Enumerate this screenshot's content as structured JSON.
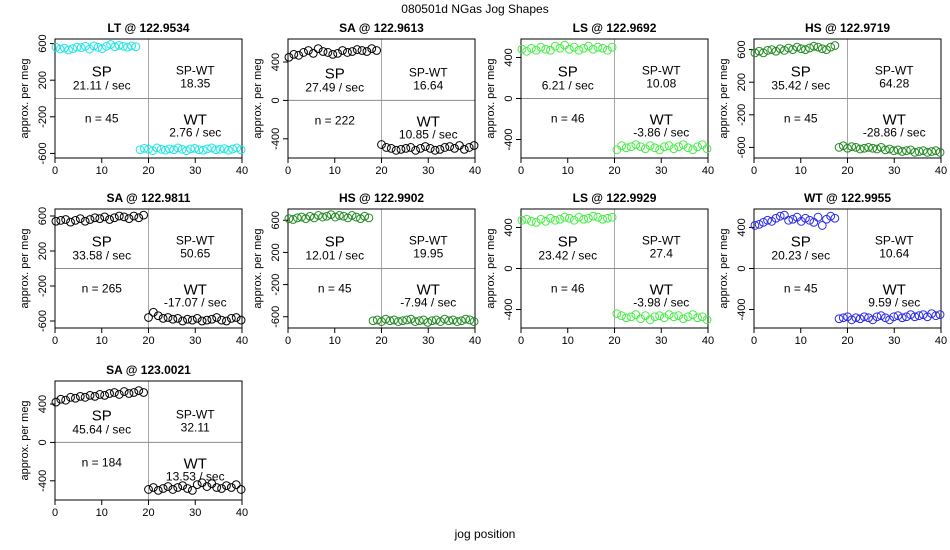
{
  "figure": {
    "title": "080501d   NGas Jog Shapes",
    "xlabel": "jog position",
    "ylabel": "approx. per meg"
  },
  "chart_data": [
    {
      "type": "scatter",
      "title": "LT @ 122.9534",
      "color": "#22e5e5",
      "xlim": [
        0,
        40
      ],
      "ylim": [
        -650,
        650
      ],
      "xticks": [
        0,
        10,
        20,
        30,
        40
      ],
      "yticks": [
        -600,
        -200,
        200,
        600
      ],
      "sp_label": "SP",
      "sp_rate": "21.11 / sec",
      "spwt_label": "SP-WT",
      "spwt_value": "18.35",
      "n_label": "n = 45",
      "wt_label": "WT",
      "wt_rate": "2.76 / sec",
      "x": [
        1,
        2,
        3,
        4,
        5,
        6,
        7,
        8,
        9,
        10,
        11,
        12,
        13,
        14,
        15,
        16,
        17,
        18,
        19,
        20,
        21,
        22,
        23,
        24,
        25,
        26,
        27,
        28,
        29,
        30,
        31,
        32,
        33,
        34,
        35,
        36,
        37,
        38,
        39,
        40,
        41,
        42,
        43,
        44,
        45
      ],
      "y": [
        560,
        540,
        550,
        530,
        545,
        560,
        555,
        570,
        540,
        575,
        560,
        545,
        570,
        590,
        565,
        580,
        570,
        560,
        575,
        565,
        -560,
        -545,
        -555,
        -570,
        -540,
        -555,
        -565,
        -550,
        -560,
        -540,
        -555,
        -570,
        -550,
        -545,
        -560,
        -565,
        -550,
        -540,
        -560,
        -555,
        -548,
        -565,
        -552,
        -540,
        -560
      ]
    },
    {
      "type": "scatter",
      "title": "SA @ 122.9613",
      "color": "#000000",
      "xlim": [
        0,
        40
      ],
      "ylim": [
        -600,
        640
      ],
      "xticks": [
        0,
        10,
        20,
        30,
        40
      ],
      "yticks": [
        -400,
        0,
        400
      ],
      "sp_label": "SP",
      "sp_rate": "27.49 / sec",
      "spwt_label": "SP-WT",
      "spwt_value": "16.64",
      "n_label": "n = 222",
      "wt_label": "WT",
      "wt_rate": "10.85 / sec",
      "x": [
        1,
        2,
        3,
        4,
        5,
        6,
        7,
        8,
        9,
        10,
        11,
        12,
        13,
        14,
        15,
        16,
        17,
        18,
        19,
        20,
        21,
        22,
        23,
        24,
        25,
        26,
        27,
        28,
        29,
        30,
        31,
        32,
        33,
        34,
        35,
        36,
        37,
        38,
        39
      ],
      "y": [
        450,
        480,
        470,
        500,
        520,
        490,
        540,
        510,
        500,
        480,
        490,
        520,
        500,
        510,
        530,
        520,
        510,
        540,
        520,
        -460,
        -490,
        -500,
        -520,
        -510,
        -500,
        -490,
        -520,
        -500,
        -480,
        -500,
        -520,
        -510,
        -490,
        -480,
        -500,
        -470,
        -510,
        -490,
        -470
      ]
    },
    {
      "type": "scatter",
      "title": "LS @ 122.9692",
      "color": "#44ee44",
      "xlim": [
        0,
        40
      ],
      "ylim": [
        -580,
        580
      ],
      "xticks": [
        0,
        10,
        20,
        30,
        40
      ],
      "yticks": [
        -400,
        0,
        400
      ],
      "sp_label": "SP",
      "sp_rate": "6.21 / sec",
      "spwt_label": "SP-WT",
      "spwt_value": "10.08",
      "n_label": "n = 46",
      "wt_label": "WT",
      "wt_rate": "-3.86 / sec",
      "x": [
        1,
        2,
        3,
        4,
        5,
        6,
        7,
        8,
        9,
        10,
        11,
        12,
        13,
        14,
        15,
        16,
        17,
        18,
        19,
        20,
        21,
        22,
        23,
        24,
        25,
        26,
        27,
        28,
        29,
        30,
        31,
        32,
        33,
        34,
        35,
        36,
        37,
        38,
        39,
        40
      ],
      "y": [
        480,
        460,
        490,
        470,
        500,
        480,
        470,
        510,
        490,
        520,
        480,
        500,
        470,
        490,
        510,
        480,
        500,
        490,
        470,
        500,
        -500,
        -460,
        -480,
        -470,
        -450,
        -470,
        -490,
        -460,
        -480,
        -500,
        -470,
        -460,
        -490,
        -470,
        -450,
        -480,
        -500,
        -470,
        -450,
        -490
      ]
    },
    {
      "type": "scatter",
      "title": "HS @ 122.9719",
      "color": "#228b22",
      "xlim": [
        0,
        40
      ],
      "ylim": [
        -730,
        730
      ],
      "xticks": [
        0,
        10,
        20,
        30,
        40
      ],
      "yticks": [
        -600,
        -200,
        200,
        600
      ],
      "sp_label": "SP",
      "sp_rate": "35.42 / sec",
      "spwt_label": "SP-WT",
      "spwt_value": "64.28",
      "n_label": "n = 45",
      "wt_label": "WT",
      "wt_rate": "-28.86 / sec",
      "x": [
        1,
        2,
        3,
        4,
        5,
        6,
        7,
        8,
        9,
        10,
        11,
        12,
        13,
        14,
        15,
        16,
        17,
        18,
        19,
        20,
        21,
        22,
        23,
        24,
        25,
        26,
        27,
        28,
        29,
        30,
        31,
        32,
        33,
        34,
        35,
        36,
        37,
        38,
        39,
        40,
        41,
        42,
        43,
        44,
        45
      ],
      "y": [
        560,
        580,
        560,
        590,
        600,
        580,
        610,
        590,
        620,
        600,
        630,
        610,
        600,
        620,
        640,
        630,
        610,
        600,
        630,
        650,
        -600,
        -580,
        -610,
        -590,
        -600,
        -620,
        -610,
        -600,
        -610,
        -620,
        -600,
        -630,
        -620,
        -640,
        -630,
        -650,
        -640,
        -630,
        -660,
        -650,
        -640,
        -660,
        -650,
        -640,
        -660
      ]
    },
    {
      "type": "scatter",
      "title": "SA @ 122.9811",
      "color": "#000000",
      "xlim": [
        0,
        40
      ],
      "ylim": [
        -680,
        680
      ],
      "xticks": [
        0,
        10,
        20,
        30,
        40
      ],
      "yticks": [
        -600,
        -200,
        200,
        600
      ],
      "sp_label": "SP",
      "sp_rate": "33.58 / sec",
      "spwt_label": "SP-WT",
      "spwt_value": "50.65",
      "n_label": "n = 265",
      "wt_label": "WT",
      "wt_rate": "-17.07 / sec",
      "x": [
        1,
        2,
        3,
        4,
        5,
        6,
        7,
        8,
        9,
        10,
        11,
        12,
        13,
        14,
        15,
        16,
        17,
        18,
        19,
        20,
        21,
        22,
        23,
        24,
        25,
        26,
        27,
        28,
        29,
        30,
        31,
        32,
        33,
        34,
        35,
        36,
        37,
        38,
        39
      ],
      "y": [
        540,
        550,
        560,
        530,
        550,
        570,
        540,
        560,
        580,
        570,
        590,
        560,
        580,
        600,
        590,
        570,
        600,
        580,
        610,
        -560,
        -500,
        -540,
        -570,
        -560,
        -580,
        -570,
        -600,
        -580,
        -590,
        -570,
        -600,
        -590,
        -580,
        -560,
        -590,
        -600,
        -570,
        -560,
        -590
      ]
    },
    {
      "type": "scatter",
      "title": "HS @ 122.9902",
      "color": "#228b22",
      "xlim": [
        0,
        40
      ],
      "ylim": [
        -740,
        740
      ],
      "xticks": [
        0,
        10,
        20,
        30,
        40
      ],
      "yticks": [
        -600,
        -200,
        200,
        600
      ],
      "sp_label": "SP",
      "sp_rate": "12.01 / sec",
      "spwt_label": "SP-WT",
      "spwt_value": "19.95",
      "n_label": "n = 45",
      "wt_label": "WT",
      "wt_rate": "-7.94 / sec",
      "x": [
        1,
        2,
        3,
        4,
        5,
        6,
        7,
        8,
        9,
        10,
        11,
        12,
        13,
        14,
        15,
        16,
        17,
        18,
        19,
        20,
        21,
        22,
        23,
        24,
        25,
        26,
        27,
        28,
        29,
        30,
        31,
        32,
        33,
        34,
        35,
        36,
        37,
        38,
        39,
        40,
        41,
        42,
        43,
        44,
        45
      ],
      "y": [
        620,
        610,
        630,
        640,
        620,
        650,
        630,
        660,
        640,
        650,
        670,
        640,
        660,
        650,
        630,
        660,
        640,
        620,
        650,
        630,
        -650,
        -640,
        -660,
        -630,
        -650,
        -640,
        -660,
        -650,
        -640,
        -630,
        -660,
        -650,
        -640,
        -670,
        -650,
        -640,
        -660,
        -630,
        -650,
        -640,
        -660,
        -650,
        -630,
        -640,
        -660
      ]
    },
    {
      "type": "scatter",
      "title": "LS @ 122.9929",
      "color": "#44ee44",
      "xlim": [
        0,
        40
      ],
      "ylim": [
        -580,
        580
      ],
      "xticks": [
        0,
        10,
        20,
        30,
        40
      ],
      "yticks": [
        -400,
        0,
        400
      ],
      "sp_label": "SP",
      "sp_rate": "23.42 / sec",
      "spwt_label": "SP-WT",
      "spwt_value": "27.4",
      "n_label": "n = 46",
      "wt_label": "WT",
      "wt_rate": "-3.98 / sec",
      "x": [
        1,
        2,
        3,
        4,
        5,
        6,
        7,
        8,
        9,
        10,
        11,
        12,
        13,
        14,
        15,
        16,
        17,
        18,
        19,
        20,
        21,
        22,
        23,
        24,
        25,
        26,
        27,
        28,
        29,
        30,
        31,
        32,
        33,
        34,
        35,
        36,
        37,
        38,
        39,
        40
      ],
      "y": [
        470,
        480,
        460,
        450,
        480,
        460,
        490,
        470,
        480,
        500,
        490,
        470,
        500,
        480,
        490,
        510,
        500,
        480,
        490,
        500,
        -440,
        -460,
        -480,
        -470,
        -450,
        -490,
        -460,
        -500,
        -470,
        -460,
        -480,
        -450,
        -470,
        -460,
        -490,
        -470,
        -450,
        -480,
        -470,
        -500
      ]
    },
    {
      "type": "scatter",
      "title": "WT @ 122.9955",
      "color": "#2a2aee",
      "xlim": [
        0,
        40
      ],
      "ylim": [
        -580,
        580
      ],
      "xticks": [
        0,
        10,
        20,
        30,
        40
      ],
      "yticks": [
        -400,
        0,
        400
      ],
      "sp_label": "SP",
      "sp_rate": "20.23 / sec",
      "spwt_label": "SP-WT",
      "spwt_value": "10.64",
      "n_label": "n = 45",
      "wt_label": "WT",
      "wt_rate": "9.59 / sec",
      "x": [
        1,
        2,
        3,
        4,
        5,
        6,
        7,
        8,
        9,
        10,
        11,
        12,
        13,
        14,
        15,
        16,
        17,
        18,
        19,
        20,
        21,
        22,
        23,
        24,
        25,
        26,
        27,
        28,
        29,
        30,
        31,
        32,
        33,
        34,
        35,
        36,
        37,
        38,
        39,
        40,
        41,
        42,
        43,
        44,
        45
      ],
      "y": [
        420,
        430,
        450,
        470,
        460,
        490,
        510,
        520,
        470,
        480,
        500,
        460,
        490,
        470,
        450,
        500,
        420,
        480,
        510,
        490,
        -490,
        -480,
        -470,
        -500,
        -480,
        -490,
        -470,
        -480,
        -500,
        -470,
        -460,
        -480,
        -500,
        -470,
        -460,
        -480,
        -470,
        -450,
        -470,
        -460,
        -450,
        -470,
        -440,
        -460,
        -450
      ]
    },
    {
      "type": "scatter",
      "title": "SA @ 123.0021",
      "color": "#000000",
      "xlim": [
        0,
        40
      ],
      "ylim": [
        -600,
        640
      ],
      "xticks": [
        0,
        10,
        20,
        30,
        40
      ],
      "yticks": [
        -400,
        0,
        400
      ],
      "sp_label": "SP",
      "sp_rate": "45.64 / sec",
      "spwt_label": "SP-WT",
      "spwt_value": "32.11",
      "n_label": "n = 184",
      "wt_label": "WT",
      "wt_rate": "13.53 / sec",
      "x": [
        1,
        2,
        3,
        4,
        5,
        6,
        7,
        8,
        9,
        10,
        11,
        12,
        13,
        14,
        15,
        16,
        17,
        18,
        19,
        20,
        21,
        22,
        23,
        24,
        25,
        26,
        27,
        28,
        29,
        30,
        31,
        32,
        33,
        34,
        35,
        36,
        37,
        38,
        39
      ],
      "y": [
        420,
        450,
        440,
        470,
        460,
        480,
        470,
        490,
        480,
        500,
        490,
        510,
        520,
        500,
        530,
        510,
        520,
        540,
        520,
        -490,
        -470,
        -500,
        -480,
        -460,
        -490,
        -470,
        -450,
        -480,
        -500,
        -440,
        -420,
        -460,
        -430,
        -470,
        -480,
        -450,
        -470,
        -440,
        -490
      ]
    }
  ]
}
